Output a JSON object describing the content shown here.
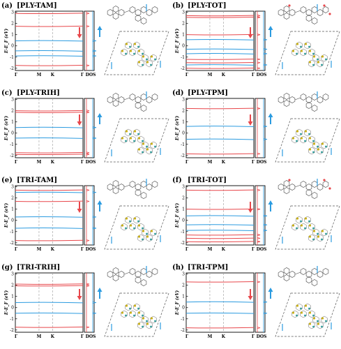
{
  "figure": {
    "panels": [
      {
        "letter": "(a)",
        "title": "[PLY-TAM]",
        "y_axis_label": "E-E_F (eV)",
        "y_ticks": [
          "3",
          "2",
          "1",
          "0",
          "-1",
          "-2"
        ],
        "x_ticks": [
          "Γ",
          "M",
          "K",
          "Γ"
        ],
        "dos_label": "DOS",
        "red_bands": [
          2.9,
          1.75,
          -1.75
        ],
        "blue_bands": [
          0.45,
          -0.45,
          -0.9
        ],
        "spin_arrows": [
          "down",
          "up"
        ],
        "lattice": "PLY-TAM"
      },
      {
        "letter": "(b)",
        "title": "[PLY-TOT]",
        "y_axis_label": "E-E_F (eV)",
        "y_ticks": [
          "3",
          "2",
          "1",
          "0",
          "-1",
          "-2"
        ],
        "x_ticks": [
          "Γ",
          "M",
          "K",
          "Γ"
        ],
        "dos_label": "DOS",
        "red_bands": [
          2.7,
          2.55,
          1.0,
          -1.2,
          -1.5,
          -2.0
        ],
        "blue_bands": [
          0.55,
          -0.3,
          -0.7,
          -1.7
        ],
        "spin_arrows": [
          "down",
          "up"
        ],
        "lattice": "PLY-TOT"
      },
      {
        "letter": "(c)",
        "title": "[PLY-TRIH]",
        "y_axis_label": "E-E_F (eV)",
        "y_ticks": [
          "3",
          "2",
          "1",
          "0",
          "-1",
          "-2"
        ],
        "x_ticks": [
          "Γ",
          "M",
          "K",
          "Γ"
        ],
        "dos_label": "DOS",
        "red_bands": [
          2.0,
          1.85,
          -1.75,
          -1.9
        ],
        "blue_bands": [
          0.5,
          -0.45
        ],
        "spin_arrows": [
          "down",
          "up"
        ],
        "lattice": "PLY-TRIH"
      },
      {
        "letter": "(d)",
        "title": "[PLY-TPM]",
        "y_axis_label": "E-E_F (eV)",
        "y_ticks": [
          "3",
          "2",
          "1",
          "0",
          "-1",
          "-2"
        ],
        "x_ticks": [
          "Γ",
          "M",
          "K",
          "Γ"
        ],
        "dos_label": "DOS",
        "red_bands": [
          2.2,
          -1.85
        ],
        "blue_bands": [
          0.6,
          -0.55
        ],
        "spin_arrows": [
          "down",
          "up"
        ],
        "lattice": "PLY-TPM"
      },
      {
        "letter": "(e)",
        "title": "[TRI-TAM]",
        "y_axis_label": "E-E_F (eV)",
        "y_ticks": [
          "3",
          "2",
          "1",
          "0",
          "-1",
          "-2"
        ],
        "x_ticks": [
          "Γ",
          "M",
          "K",
          "Γ"
        ],
        "dos_label": "DOS",
        "red_bands": [
          2.7,
          1.7,
          -1.8
        ],
        "blue_bands": [
          2.5,
          0.3,
          -0.7
        ],
        "spin_arrows": [
          "down",
          "up"
        ],
        "lattice": "TRI-TAM"
      },
      {
        "letter": "(f)",
        "title": "[TRI-TOT]",
        "y_axis_label": "E-E_F (eV)",
        "y_ticks": [
          "3",
          "2",
          "1",
          "0",
          "-1",
          "-2"
        ],
        "x_ticks": [
          "Γ",
          "M",
          "K",
          "Γ"
        ],
        "dos_label": "DOS",
        "red_bands": [
          2.7,
          1.0,
          -1.3,
          -1.6,
          -1.9
        ],
        "blue_bands": [
          0.4,
          -0.4,
          -0.9
        ],
        "spin_arrows": [
          "down",
          "up"
        ],
        "lattice": "TRI-TOT"
      },
      {
        "letter": "(g)",
        "title": "[TRI-TRIH]",
        "y_axis_label": "E-E_F (eV)",
        "y_ticks": [
          "3",
          "2",
          "1",
          "0",
          "-1",
          "-2"
        ],
        "x_ticks": [
          "Γ",
          "M",
          "K",
          "Γ"
        ],
        "dos_label": "DOS",
        "red_bands": [
          2.1,
          1.95,
          -1.75
        ],
        "blue_bands": [
          0.45,
          -0.5
        ],
        "spin_arrows": [
          "down",
          "up"
        ],
        "lattice": "TRI-TRIH"
      },
      {
        "letter": "(h)",
        "title": "[TRI-TPM]",
        "y_axis_label": "E-E_F (eV)",
        "y_ticks": [
          "3",
          "2",
          "1",
          "0",
          "-1",
          "-2"
        ],
        "x_ticks": [
          "Γ",
          "M",
          "K",
          "Γ"
        ],
        "dos_label": "DOS",
        "red_bands": [
          2.3,
          -1.8
        ],
        "blue_bands": [
          0.5,
          -0.5
        ],
        "spin_arrows": [
          "down",
          "up"
        ],
        "lattice": "TRI-TPM"
      }
    ]
  },
  "colors": {
    "spin_down": "#e8474b",
    "spin_up": "#2b9be0",
    "lobe_yellow": "#c9b11a",
    "lobe_teal": "#2f9c9a",
    "axis": "#000000",
    "dash": "#9a9a9a"
  }
}
